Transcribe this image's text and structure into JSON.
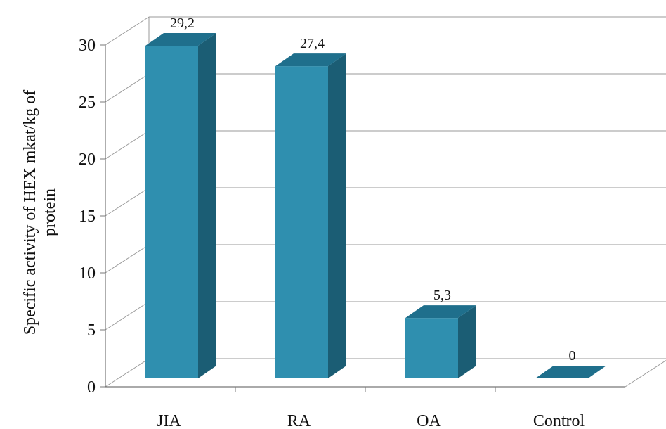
{
  "chart_data": {
    "type": "bar",
    "style": "3d-column",
    "categories": [
      "JIA",
      "RA",
      "OA",
      "Control"
    ],
    "values": [
      29.2,
      27.4,
      5.3,
      0
    ],
    "data_labels": [
      "29,2",
      "27,4",
      "5,3",
      "0"
    ],
    "y_tick_labels": [
      "0",
      "5",
      "10",
      "15",
      "20",
      "25",
      "30"
    ],
    "ylim": [
      0,
      30
    ],
    "ylabel_line1": "Specific activity of HEX mkat/kg of",
    "ylabel_line2": "protein",
    "xlabel": "",
    "title": "",
    "grid": true,
    "legend": "none",
    "colors": {
      "bar_front": "#2f8faf",
      "bar_top": "#1f6f8c",
      "bar_side": "#1b5d74",
      "grid": "#9a9a9a",
      "axis": "#777777"
    }
  }
}
